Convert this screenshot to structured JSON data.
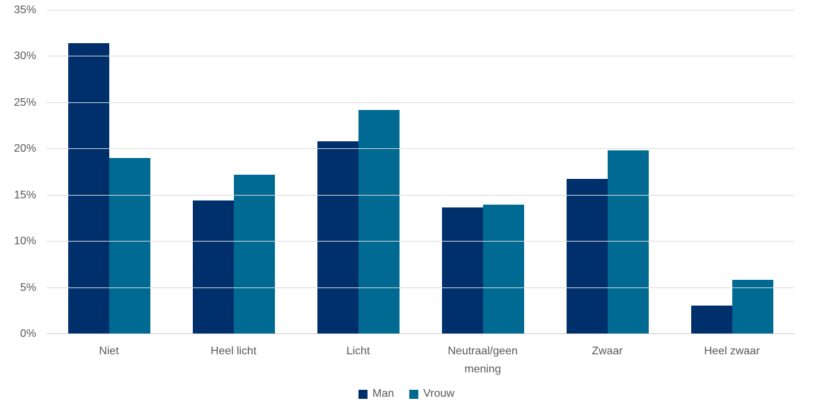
{
  "chart_data": {
    "type": "bar",
    "categories": [
      "Niet",
      "Heel licht",
      "Licht",
      "Neutraal/geen\nmening",
      "Zwaar",
      "Heel zwaar"
    ],
    "series": [
      {
        "name": "Man",
        "color": "#00306c",
        "values": [
          31.4,
          14.4,
          20.8,
          13.6,
          16.7,
          3.0
        ]
      },
      {
        "name": "Vrouw",
        "color": "#006a92",
        "values": [
          19.0,
          17.2,
          24.2,
          13.9,
          19.8,
          5.8
        ]
      }
    ],
    "ylim": [
      0,
      35
    ],
    "ytick_step": 5,
    "ytick_labels": [
      "0%",
      "5%",
      "10%",
      "15%",
      "20%",
      "25%",
      "30%",
      "35%"
    ],
    "grid": true,
    "legend_position": "bottom",
    "colors": {
      "gridline": "#d9d9d9",
      "axis_line": "#c9c9c9",
      "tick_label": "#595959"
    }
  }
}
